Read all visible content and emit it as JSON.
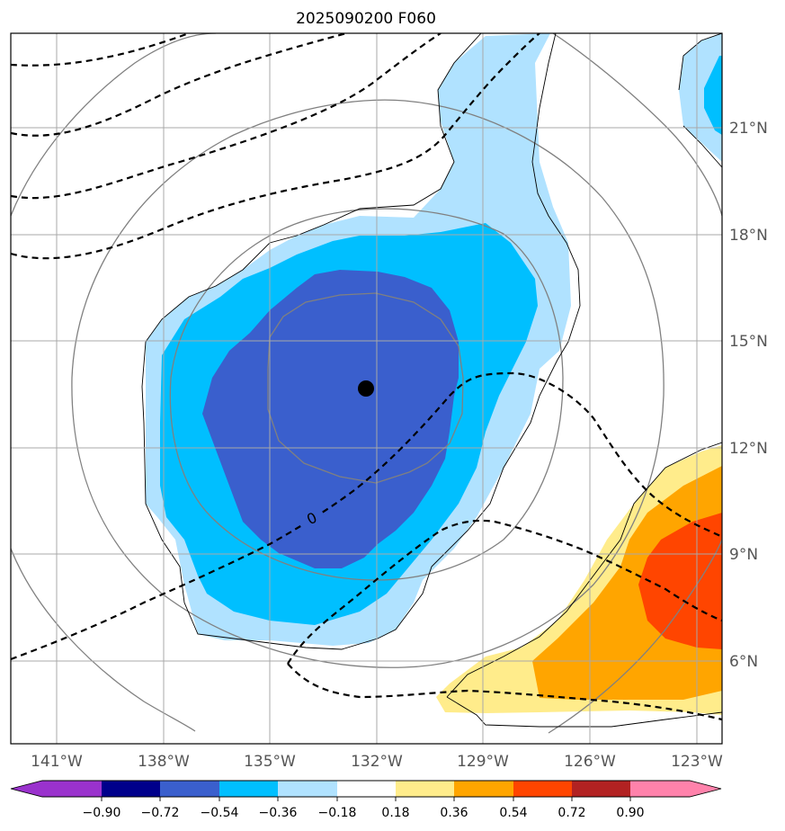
{
  "title": "2025090200 F060",
  "colors": {
    "grid": "#a8a8a8",
    "coast": "#000000",
    "ring": "#808080",
    "dashed": "#000000",
    "storm_marker": "#000000"
  },
  "map": {
    "lon_labels": [
      "141°W",
      "138°W",
      "135°W",
      "132°W",
      "129°W",
      "126°W",
      "123°W"
    ],
    "lat_labels": [
      "21°N",
      "18°N",
      "15°N",
      "12°N",
      "9°N",
      "6°N"
    ],
    "contour_label": "0"
  },
  "colorbar": {
    "colors": [
      "#9a32cd",
      "#00008b",
      "#3a5fcd",
      "#00bfff",
      "#b0e2ff",
      "#ffffff",
      "#ffec8b",
      "#ffa500",
      "#ff4500",
      "#b22222",
      "#ff82ab"
    ],
    "ticks": [
      "−0.90",
      "−0.72",
      "−0.54",
      "−0.36",
      "−0.18",
      "0.18",
      "0.36",
      "0.54",
      "0.72",
      "0.90"
    ]
  }
}
